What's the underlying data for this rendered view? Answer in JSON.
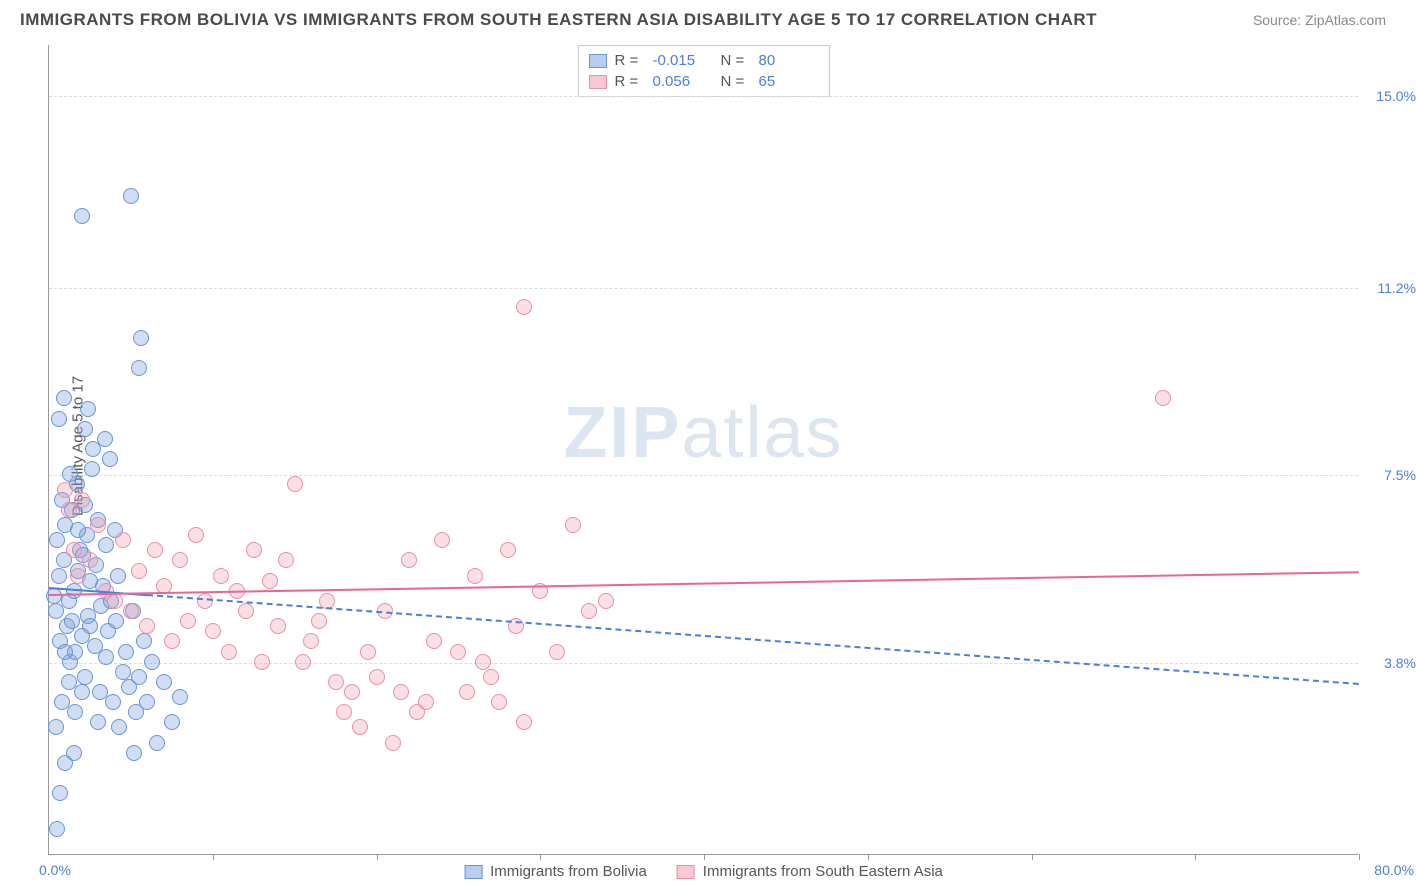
{
  "header": {
    "title": "IMMIGRANTS FROM BOLIVIA VS IMMIGRANTS FROM SOUTH EASTERN ASIA DISABILITY AGE 5 TO 17 CORRELATION CHART",
    "source": "Source: ZipAtlas.com"
  },
  "watermark": {
    "bold": "ZIP",
    "light": "atlas"
  },
  "chart": {
    "type": "scatter",
    "ylabel": "Disability Age 5 to 17",
    "xlim": [
      0,
      80
    ],
    "ylim": [
      0,
      16
    ],
    "xlim_labels": {
      "min": "0.0%",
      "max": "80.0%"
    },
    "ytick_values": [
      3.8,
      7.5,
      11.2,
      15.0
    ],
    "ytick_labels": [
      "3.8%",
      "7.5%",
      "11.2%",
      "15.0%"
    ],
    "xtick_values": [
      10,
      20,
      30,
      40,
      50,
      60,
      70,
      80
    ],
    "background_color": "#ffffff",
    "grid_color": "#dddddd",
    "axis_color": "#999999",
    "tick_label_color": "#4a7fd8",
    "marker_radius": 8,
    "series": [
      {
        "name": "Immigrants from Bolivia",
        "fill_color": "rgba(120,160,220,0.35)",
        "stroke_color": "#6a95d6",
        "swatch_fill": "#b8cdef",
        "swatch_border": "#6a95d6",
        "trend_color": "#4a7fd8",
        "trend_dash": true,
        "R": "-0.015",
        "N": "80",
        "trend": {
          "x1": 0,
          "y1": 5.3,
          "x2": 80,
          "y2": 3.4
        },
        "trend_solid_until_x": 6,
        "points": [
          [
            0.3,
            5.1
          ],
          [
            0.4,
            4.8
          ],
          [
            0.5,
            6.2
          ],
          [
            0.6,
            5.5
          ],
          [
            0.7,
            4.2
          ],
          [
            0.8,
            7.0
          ],
          [
            0.9,
            5.8
          ],
          [
            1.0,
            6.5
          ],
          [
            1.1,
            4.5
          ],
          [
            1.2,
            5.0
          ],
          [
            1.3,
            3.8
          ],
          [
            1.4,
            6.8
          ],
          [
            1.5,
            5.2
          ],
          [
            1.6,
            4.0
          ],
          [
            1.7,
            7.3
          ],
          [
            1.8,
            5.6
          ],
          [
            1.9,
            6.0
          ],
          [
            2.0,
            4.3
          ],
          [
            2.1,
            5.9
          ],
          [
            2.2,
            3.5
          ],
          [
            2.3,
            6.3
          ],
          [
            2.4,
            4.7
          ],
          [
            2.5,
            5.4
          ],
          [
            2.6,
            7.6
          ],
          [
            2.7,
            8.0
          ],
          [
            2.8,
            4.1
          ],
          [
            2.9,
            5.7
          ],
          [
            3.0,
            6.6
          ],
          [
            3.1,
            3.2
          ],
          [
            3.2,
            4.9
          ],
          [
            3.3,
            5.3
          ],
          [
            3.4,
            8.2
          ],
          [
            3.5,
            6.1
          ],
          [
            3.6,
            4.4
          ],
          [
            3.7,
            7.8
          ],
          [
            3.8,
            5.0
          ],
          [
            3.9,
            3.0
          ],
          [
            4.0,
            6.4
          ],
          [
            4.1,
            4.6
          ],
          [
            4.2,
            5.5
          ],
          [
            4.3,
            2.5
          ],
          [
            4.5,
            3.6
          ],
          [
            4.7,
            4.0
          ],
          [
            4.9,
            3.3
          ],
          [
            5.1,
            4.8
          ],
          [
            5.3,
            2.8
          ],
          [
            5.5,
            3.5
          ],
          [
            5.8,
            4.2
          ],
          [
            6.0,
            3.0
          ],
          [
            6.3,
            3.8
          ],
          [
            6.6,
            2.2
          ],
          [
            7.0,
            3.4
          ],
          [
            7.5,
            2.6
          ],
          [
            8.0,
            3.1
          ],
          [
            5.6,
            10.2
          ],
          [
            2.0,
            12.6
          ],
          [
            2.2,
            8.4
          ],
          [
            2.4,
            8.8
          ],
          [
            5.5,
            9.6
          ],
          [
            5.0,
            13.0
          ],
          [
            1.0,
            1.8
          ],
          [
            1.5,
            2.0
          ],
          [
            5.2,
            2.0
          ],
          [
            0.5,
            0.5
          ],
          [
            0.8,
            3.0
          ],
          [
            1.2,
            3.4
          ],
          [
            1.6,
            2.8
          ],
          [
            2.0,
            3.2
          ],
          [
            2.5,
            4.5
          ],
          [
            3.0,
            2.6
          ],
          [
            3.5,
            3.9
          ],
          [
            0.6,
            8.6
          ],
          [
            0.9,
            9.0
          ],
          [
            1.3,
            7.5
          ],
          [
            1.0,
            4.0
          ],
          [
            1.4,
            4.6
          ],
          [
            1.8,
            6.4
          ],
          [
            2.2,
            6.9
          ],
          [
            0.4,
            2.5
          ],
          [
            0.7,
            1.2
          ]
        ]
      },
      {
        "name": "Immigrants from South Eastern Asia",
        "fill_color": "rgba(240,150,170,0.30)",
        "stroke_color": "#e890a8",
        "swatch_fill": "#f8c8d4",
        "swatch_border": "#e890a8",
        "trend_color": "#e86890",
        "trend_dash": false,
        "R": "0.056",
        "N": "65",
        "trend": {
          "x1": 0,
          "y1": 5.15,
          "x2": 80,
          "y2": 5.6
        },
        "points": [
          [
            1.0,
            7.2
          ],
          [
            1.2,
            6.8
          ],
          [
            1.5,
            6.0
          ],
          [
            1.8,
            5.5
          ],
          [
            2.0,
            7.0
          ],
          [
            2.5,
            5.8
          ],
          [
            3.0,
            6.5
          ],
          [
            3.5,
            5.2
          ],
          [
            4.0,
            5.0
          ],
          [
            4.5,
            6.2
          ],
          [
            5.0,
            4.8
          ],
          [
            5.5,
            5.6
          ],
          [
            6.0,
            4.5
          ],
          [
            6.5,
            6.0
          ],
          [
            7.0,
            5.3
          ],
          [
            7.5,
            4.2
          ],
          [
            8.0,
            5.8
          ],
          [
            8.5,
            4.6
          ],
          [
            9.0,
            6.3
          ],
          [
            9.5,
            5.0
          ],
          [
            10.0,
            4.4
          ],
          [
            10.5,
            5.5
          ],
          [
            11.0,
            4.0
          ],
          [
            11.5,
            5.2
          ],
          [
            12.0,
            4.8
          ],
          [
            12.5,
            6.0
          ],
          [
            13.0,
            3.8
          ],
          [
            13.5,
            5.4
          ],
          [
            14.0,
            4.5
          ],
          [
            15.0,
            7.3
          ],
          [
            16.0,
            4.2
          ],
          [
            17.0,
            5.0
          ],
          [
            18.0,
            2.8
          ],
          [
            18.5,
            3.2
          ],
          [
            19.0,
            2.5
          ],
          [
            20.0,
            3.5
          ],
          [
            21.0,
            2.2
          ],
          [
            22.0,
            5.8
          ],
          [
            23.0,
            3.0
          ],
          [
            24.0,
            6.2
          ],
          [
            25.0,
            4.0
          ],
          [
            26.0,
            5.5
          ],
          [
            27.0,
            3.5
          ],
          [
            28.0,
            6.0
          ],
          [
            29.0,
            2.6
          ],
          [
            30.0,
            5.2
          ],
          [
            31.0,
            4.0
          ],
          [
            32.0,
            6.5
          ],
          [
            33.0,
            4.8
          ],
          [
            34.0,
            5.0
          ],
          [
            25.5,
            3.2
          ],
          [
            26.5,
            3.8
          ],
          [
            27.5,
            3.0
          ],
          [
            28.5,
            4.5
          ],
          [
            22.5,
            2.8
          ],
          [
            23.5,
            4.2
          ],
          [
            29.0,
            10.8
          ],
          [
            68.0,
            9.0
          ],
          [
            15.5,
            3.8
          ],
          [
            16.5,
            4.6
          ],
          [
            17.5,
            3.4
          ],
          [
            20.5,
            4.8
          ],
          [
            21.5,
            3.2
          ],
          [
            19.5,
            4.0
          ],
          [
            14.5,
            5.8
          ]
        ]
      }
    ],
    "legend_bottom": [
      {
        "label": "Immigrants from Bolivia",
        "series_idx": 0
      },
      {
        "label": "Immigrants from South Eastern Asia",
        "series_idx": 1
      }
    ]
  }
}
